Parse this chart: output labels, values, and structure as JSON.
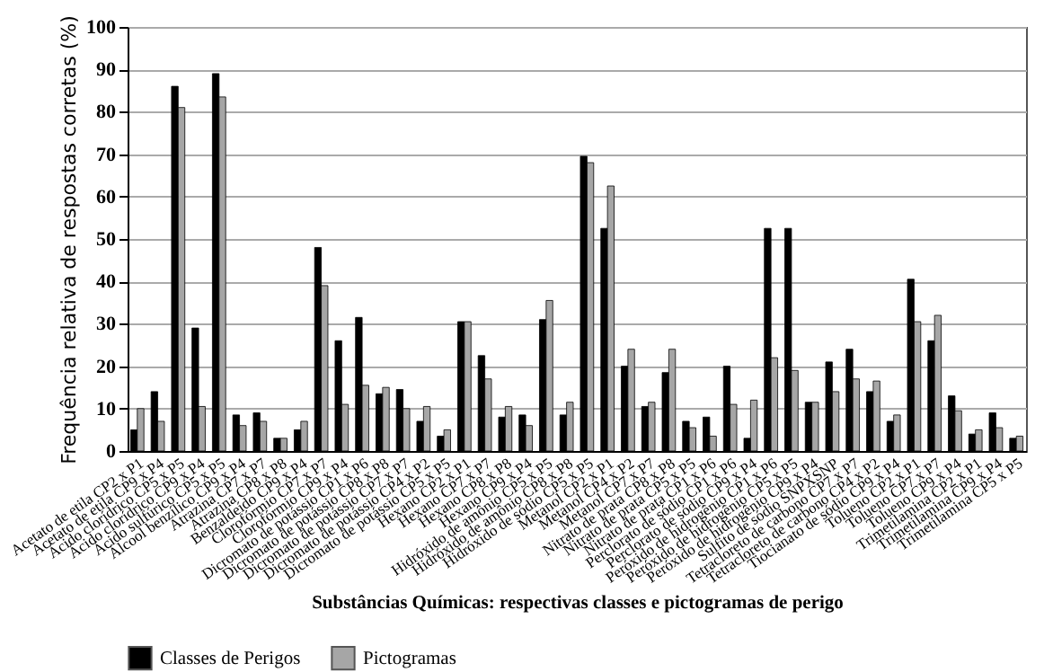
{
  "chart_data": {
    "type": "bar",
    "xlabel": "Substâncias Químicas: respectivas classes e pictogramas de perigo",
    "ylabel": "Frequência relativa de respostas corretas (%)",
    "categories": [
      "Acetato de etila CP2 x P1",
      "Acetato de etila CP9 x P4",
      "Ácido clorídrico CP5 x P5",
      "Ácido clorídrico CP9 x P4",
      "Ácido sulfúrico CP5 x P5",
      "Álcool benzílico CP9 x P4",
      "Atrazina CP7 x P7",
      "Atrazina CP8 x P8",
      "Benzaldeído CP9 x P4",
      "Clorofórmio CP7 x P7",
      "Clorofórmio CP9 x P4",
      "Dicromato de potássio CP1 x P6",
      "Dicromato de potássio CP8 x P8",
      "Dicromato de potássio CP7 x P7",
      "Dicromato de potássio CP4 x P2",
      "Dicromato de potássio CP5 x P5",
      "Hexano CP2 x P1",
      "Hexano CP7 x P7",
      "Hexano CP8 x P8",
      "Hexano CP9 x P4",
      "Hidróxido de amônio CP5 x P5",
      "Hidróxido de amônio CP8 x P8",
      "Hidróxido de sódio CP5 x P5",
      "Metanol CP2 x P1",
      "Metanol CP4 x P2",
      "Metanol CP7 x P7",
      "Nitrato de prata CP8 x P8",
      "Nitrato de prata CP5 x P5",
      "Nitrato de prata CP1 x P6",
      "Perclorato de sódio CP1 x P6",
      "Perclorato de sódio CP9 x P4",
      "Peróxido de hidrogênio CP1 x P6",
      "Peróxido de hidrogênio CP5 x P5",
      "Peróxido de hidrogênio CP9 x P4",
      "Sulfito de sódio SNPXSNP",
      "Tetracloreto de carbono CP7 x P7",
      "Tetracloreto de carbono CP4 x P2",
      "Tiocianato de sódio CP9 x P4",
      "Tolueno CP2 x P1",
      "Tolueno CP7 x P7",
      "Tolueno CP9 x P4",
      "Trimetilamina CP2 x P1",
      "Trimetilamina CP9 x P4",
      "Trimetilamina CP5 x P5"
    ],
    "series": [
      {
        "name": "Classes de Perigos",
        "color": "#000000",
        "values": [
          5,
          14,
          86,
          29,
          89,
          8.5,
          9,
          3,
          5,
          48,
          26,
          31.5,
          13.5,
          14.5,
          7,
          3.5,
          30.5,
          22.5,
          8,
          8.5,
          31,
          8.5,
          69.5,
          52.5,
          20,
          10.5,
          18.5,
          7,
          8,
          20,
          3,
          52.5,
          52.5,
          11.5,
          21,
          24,
          14,
          7,
          40.5,
          26,
          13,
          4,
          9,
          3
        ]
      },
      {
        "name": "Pictogramas",
        "color": "#a6a6a6",
        "values": [
          10,
          7,
          81,
          10.5,
          83.5,
          6,
          7,
          3,
          7,
          39,
          11,
          15.5,
          15,
          10,
          10.5,
          5,
          30.5,
          17,
          10.5,
          6,
          35.5,
          11.5,
          68,
          62.5,
          24,
          11.5,
          24,
          5.5,
          3.5,
          11,
          12,
          22,
          19,
          11.5,
          14,
          17,
          16.5,
          8.5,
          30.5,
          32,
          9.5,
          5,
          5.5,
          3.5
        ]
      }
    ],
    "ylim": [
      0,
      100
    ],
    "yticks": [
      0,
      10,
      20,
      30,
      40,
      50,
      60,
      70,
      80,
      90,
      100
    ],
    "grid": "y",
    "legend": "bottom"
  }
}
